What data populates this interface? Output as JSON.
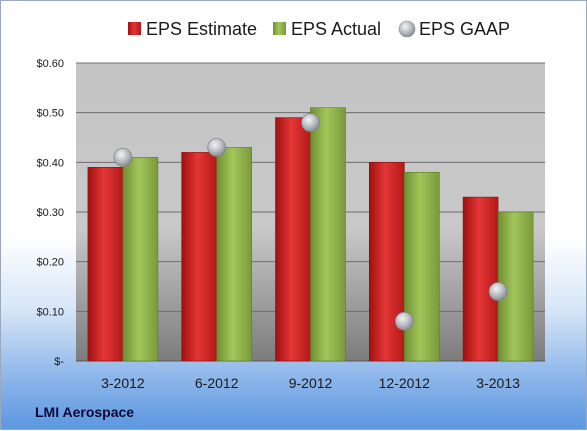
{
  "chart_data": {
    "type": "bar",
    "categories": [
      "3-2012",
      "6-2012",
      "9-2012",
      "12-2012",
      "3-2013"
    ],
    "series": [
      {
        "name": "EPS Estimate",
        "kind": "bar",
        "color": "#d42a2a",
        "values": [
          0.39,
          0.42,
          0.49,
          0.4,
          0.33
        ]
      },
      {
        "name": "EPS Actual",
        "kind": "bar",
        "color": "#8eb24a",
        "values": [
          0.41,
          0.43,
          0.51,
          0.38,
          0.3
        ]
      },
      {
        "name": "EPS GAAP",
        "kind": "marker",
        "color": "#b9bcc2",
        "values": [
          0.41,
          0.43,
          0.48,
          0.08,
          0.14
        ]
      }
    ],
    "yticks": [
      "$-",
      "$0.10",
      "$0.20",
      "$0.30",
      "$0.40",
      "$0.50",
      "$0.60"
    ],
    "ylim": [
      0,
      0.6
    ],
    "legend_position": "top",
    "grid": true,
    "company": "LMI Aerospace"
  }
}
